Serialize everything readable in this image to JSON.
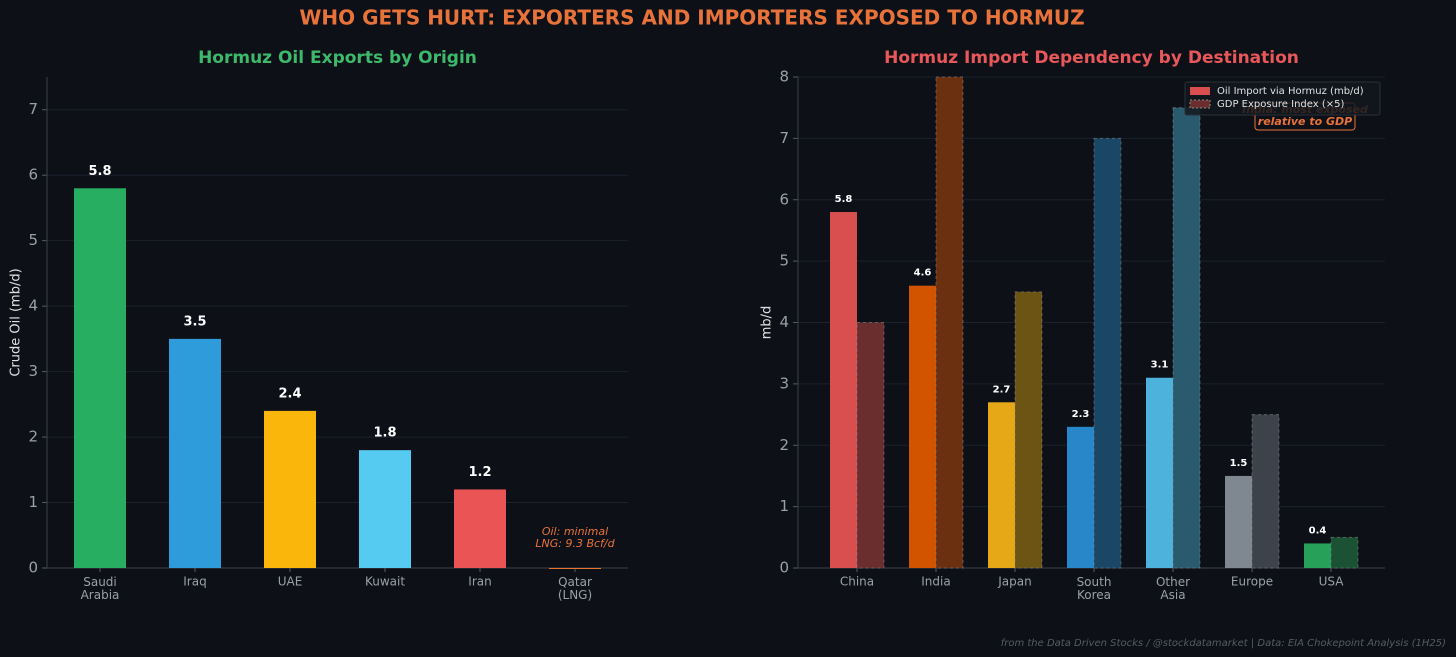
{
  "title": "WHO GETS HURT: EXPORTERS AND IMPORTERS EXPOSED TO HORMUZ",
  "footer": "from the Data Driven Stocks / @stockdatamarket  |  Data: EIA Chokepoint Analysis (1H25)",
  "chart_data": [
    {
      "type": "bar",
      "title": "Hormuz Oil Exports by Origin",
      "ylabel": "Crude Oil (mb/d)",
      "categories": [
        "Saudi\nArabia",
        "Iraq",
        "UAE",
        "Kuwait",
        "Iran",
        "Qatar\n(LNG)"
      ],
      "values": [
        5.8,
        3.5,
        2.4,
        1.8,
        1.2,
        0
      ],
      "value_labels": [
        "5.8",
        "3.5",
        "2.4",
        "1.8",
        "1.2",
        null
      ],
      "colors": [
        "#27ae60",
        "#2e9bdb",
        "#fbb60c",
        "#56cbf2",
        "#eb5454",
        "#e8732a"
      ],
      "ylim": [
        0,
        7.5
      ],
      "yticks": [
        0,
        1,
        2,
        3,
        4,
        5,
        6,
        7
      ],
      "grid": true,
      "annotation": "Oil: minimal\nLNG: 9.3 Bcf/d"
    },
    {
      "type": "bar",
      "title": "Hormuz Import Dependency by Destination",
      "ylabel": "mb/d",
      "categories": [
        "China",
        "India",
        "Japan",
        "South\nKorea",
        "Other\nAsia",
        "Europe",
        "USA"
      ],
      "series": [
        {
          "name": "Oil Import via Hormuz (mb/d)",
          "color": "#d94f4f",
          "values": [
            5.8,
            4.6,
            2.7,
            2.3,
            3.1,
            1.5,
            0.4
          ],
          "value_labels": [
            "5.8",
            "4.6",
            "2.7",
            "2.3",
            "3.1",
            "1.5",
            "0.4"
          ],
          "colors": [
            "#d94f4f",
            "#d35400",
            "#e6a817",
            "#2787c9",
            "#4db3dd",
            "#7f8790",
            "#27a05a"
          ]
        },
        {
          "name": "GDP Exposure Index (×5)",
          "color": "#6b2e2e",
          "dashed": true,
          "values": [
            4,
            8,
            4.5,
            7,
            7.5,
            2.5,
            0.5
          ],
          "colors": [
            "#6b2e2e",
            "#6b3010",
            "#6b5414",
            "#1b4766",
            "#2a5a6e",
            "#3d434a",
            "#1a5233"
          ]
        }
      ],
      "ylim": [
        0,
        8
      ],
      "yticks": [
        0,
        1,
        2,
        3,
        4,
        5,
        6,
        7,
        8
      ],
      "grid": true,
      "legend": "upper right",
      "annotation": "India: most exposed\nrelative to GDP"
    }
  ]
}
